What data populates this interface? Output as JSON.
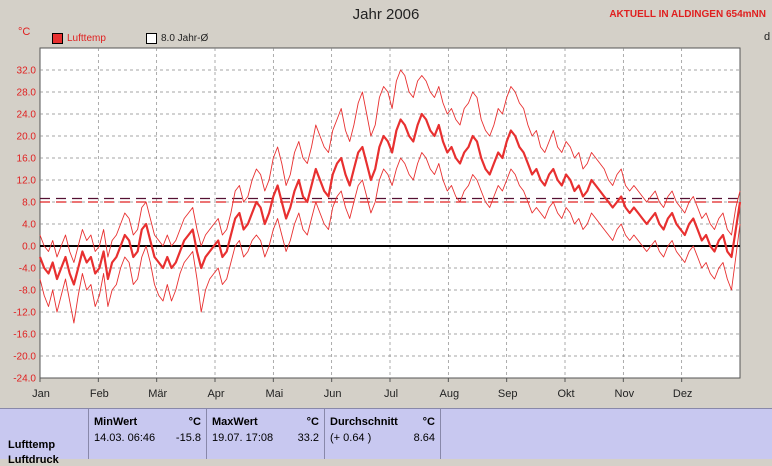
{
  "title": "Jahr 2006",
  "station": "AKTUELL IN ALDINGEN 654mNN",
  "right_edge_text": "d",
  "legend": {
    "series_label": "Lufttemp",
    "series_color": "#e83030",
    "avg_label": "8.0 Jahr-Ø"
  },
  "chart_data": {
    "type": "line",
    "title": "Jahr 2006",
    "ylabel": "°C",
    "xlabel": "",
    "ylim": [
      -24.0,
      36.0
    ],
    "yticks": [
      "32.0",
      "28.0",
      "24.0",
      "20.0",
      "16.0",
      "12.0",
      "8.0",
      "4.0",
      "0.0",
      "-4.0",
      "-8.0",
      "-12.0",
      "-16.0",
      "-20.0",
      "-24.0"
    ],
    "xticks": [
      "Jan",
      "Feb",
      "Mär",
      "Apr",
      "Mai",
      "Jun",
      "Jul",
      "Aug",
      "Sep",
      "Okt",
      "Nov",
      "Dez"
    ],
    "grid": true,
    "reference_lines": [
      {
        "label": "8.0 Jahr-Ø",
        "value": 8.0
      },
      {
        "label": "Durchschnitt",
        "value": 8.64
      }
    ],
    "series": [
      {
        "name": "Lufttemp",
        "values": [
          -2,
          -4,
          -5,
          -3,
          -6,
          -4,
          -2,
          -5,
          -7,
          -4,
          -1,
          -3,
          -2,
          -5,
          -4,
          -1,
          -6,
          -3,
          -2,
          0,
          2,
          1,
          -2,
          -1,
          3,
          4,
          1,
          -2,
          -3,
          -4,
          -2,
          -4,
          -3,
          -1,
          1,
          2,
          3,
          -1,
          -4,
          -2,
          -1,
          0,
          1,
          -2,
          -1,
          2,
          5,
          6,
          3,
          4,
          6,
          8,
          7,
          4,
          6,
          9,
          11,
          8,
          5,
          7,
          10,
          12,
          9,
          8,
          11,
          14,
          12,
          10,
          9,
          13,
          15,
          16,
          13,
          11,
          14,
          17,
          18,
          15,
          12,
          14,
          18,
          20,
          19,
          17,
          21,
          23,
          22,
          20,
          19,
          22,
          24,
          23,
          21,
          20,
          22,
          19,
          17,
          18,
          16,
          15,
          17,
          18,
          20,
          19,
          16,
          14,
          13,
          15,
          17,
          16,
          19,
          21,
          20,
          18,
          17,
          15,
          13,
          14,
          12,
          11,
          13,
          14,
          12,
          11,
          13,
          12,
          10,
          11,
          9,
          10,
          12,
          11,
          10,
          9,
          8,
          7,
          8,
          9,
          7,
          6,
          7,
          6,
          5,
          4,
          5,
          6,
          4,
          3,
          5,
          6,
          4,
          3,
          2,
          4,
          5,
          3,
          1,
          2,
          0,
          -1,
          1,
          2,
          -1,
          -2,
          3,
          8
        ]
      },
      {
        "name": "Tmax",
        "values": [
          2,
          0,
          -1,
          1,
          -2,
          0,
          2,
          -1,
          -3,
          0,
          3,
          1,
          2,
          -1,
          0,
          3,
          -2,
          1,
          2,
          4,
          6,
          5,
          2,
          3,
          7,
          8,
          5,
          2,
          1,
          0,
          2,
          0,
          1,
          3,
          5,
          6,
          7,
          3,
          0,
          2,
          3,
          4,
          5,
          2,
          3,
          6,
          10,
          11,
          8,
          9,
          12,
          14,
          13,
          10,
          12,
          16,
          18,
          15,
          11,
          13,
          17,
          19,
          16,
          15,
          18,
          22,
          20,
          18,
          17,
          21,
          23,
          25,
          21,
          19,
          22,
          26,
          28,
          24,
          20,
          22,
          27,
          29,
          28,
          25,
          30,
          32,
          31,
          28,
          27,
          30,
          31,
          30,
          28,
          27,
          29,
          26,
          24,
          25,
          23,
          22,
          25,
          26,
          28,
          27,
          23,
          21,
          20,
          22,
          25,
          24,
          27,
          29,
          28,
          26,
          25,
          22,
          20,
          21,
          18,
          17,
          19,
          21,
          18,
          17,
          19,
          18,
          16,
          17,
          14,
          15,
          17,
          16,
          15,
          14,
          12,
          11,
          13,
          14,
          11,
          10,
          11,
          10,
          9,
          8,
          9,
          10,
          8,
          7,
          9,
          10,
          8,
          7,
          6,
          8,
          9,
          7,
          5,
          6,
          4,
          3,
          5,
          6,
          3,
          2,
          7,
          10
        ]
      },
      {
        "name": "Tmin",
        "values": [
          -6,
          -9,
          -11,
          -8,
          -12,
          -9,
          -6,
          -10,
          -14,
          -9,
          -5,
          -8,
          -7,
          -11,
          -9,
          -5,
          -11,
          -8,
          -7,
          -4,
          -2,
          -3,
          -7,
          -6,
          -2,
          0,
          -3,
          -7,
          -9,
          -10,
          -7,
          -10,
          -8,
          -5,
          -3,
          -2,
          -1,
          -6,
          -12,
          -8,
          -6,
          -5,
          -4,
          -7,
          -6,
          -3,
          0,
          1,
          -2,
          -1,
          1,
          2,
          1,
          -2,
          0,
          3,
          5,
          2,
          -1,
          1,
          4,
          6,
          3,
          2,
          5,
          8,
          6,
          4,
          3,
          7,
          9,
          10,
          7,
          5,
          8,
          11,
          12,
          9,
          6,
          8,
          12,
          14,
          13,
          11,
          14,
          16,
          15,
          13,
          12,
          15,
          17,
          16,
          14,
          13,
          15,
          12,
          10,
          11,
          9,
          8,
          10,
          11,
          13,
          12,
          10,
          8,
          7,
          9,
          11,
          10,
          12,
          14,
          13,
          11,
          10,
          8,
          6,
          7,
          6,
          5,
          7,
          8,
          6,
          5,
          7,
          6,
          4,
          5,
          3,
          4,
          6,
          5,
          4,
          3,
          2,
          1,
          3,
          4,
          2,
          1,
          2,
          1,
          0,
          -1,
          0,
          1,
          -1,
          -2,
          0,
          1,
          -1,
          -2,
          -3,
          -1,
          0,
          -2,
          -4,
          -3,
          -5,
          -6,
          -4,
          -3,
          -6,
          -8,
          -2,
          4
        ]
      }
    ]
  },
  "stats": {
    "row_label": "Lufttemp",
    "row_label_2": "Luftdruck",
    "min": {
      "header": "MinWert",
      "unit": "°C",
      "date": "14.03.  06:46",
      "value": "-15.8"
    },
    "max": {
      "header": "MaxWert",
      "unit": "°C",
      "date": "19.07.  17:08",
      "value": "33.2"
    },
    "avg": {
      "header": "Durchschnitt",
      "unit": "°C",
      "delta": "(+ 0.64 )",
      "value": "8.64"
    }
  }
}
